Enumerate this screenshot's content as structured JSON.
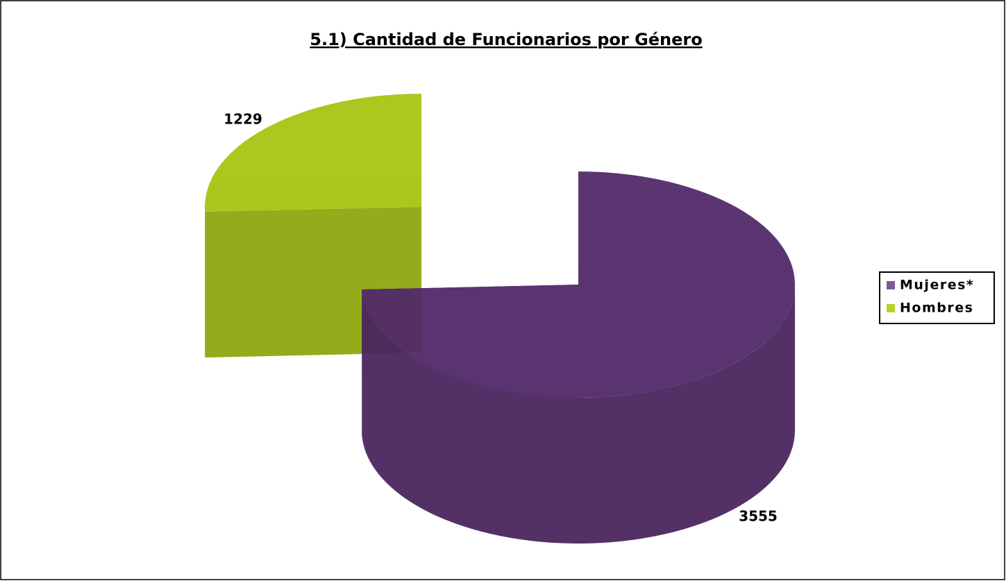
{
  "chart_data": {
    "type": "pie3d",
    "title": "5.1) Cantidad de Funcionarios por Género",
    "categories": [
      "Mujeres*",
      "Hombres"
    ],
    "values": [
      3555,
      1229
    ],
    "colors": [
      "#522a6a",
      "#a8c412"
    ],
    "legend_colors": [
      "#7e5a9b",
      "#b9d22a"
    ],
    "legend": "right"
  }
}
